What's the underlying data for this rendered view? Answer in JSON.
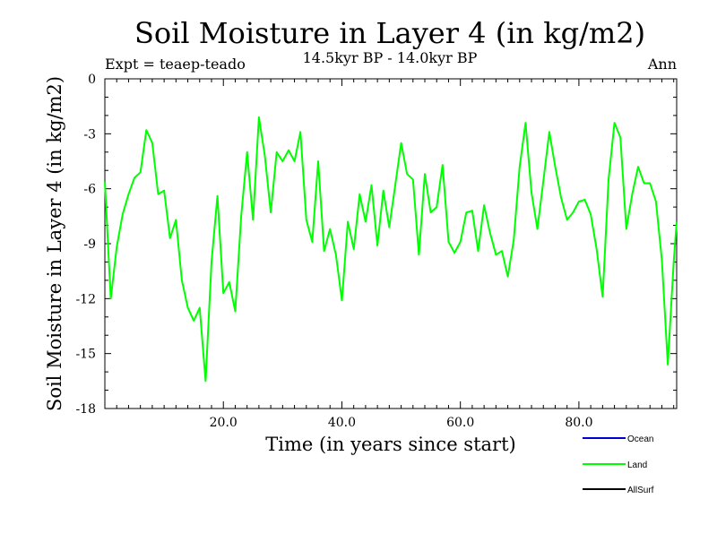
{
  "chart_data": {
    "type": "line",
    "title": "Soil Moisture in Layer 4 (in kg/m2)",
    "subtitle": "14.5kyr BP - 14.0kyr BP",
    "experiment_label": "Expt = teaep-teado",
    "season_label": "Ann",
    "xlabel": "Time (in years since start)",
    "ylabel": "Soil Moisture in Layer 4 (in kg/m2)",
    "xlim": [
      0,
      96.5
    ],
    "ylim": [
      -18,
      0
    ],
    "x_ticks": [
      20,
      40,
      60,
      80
    ],
    "x_tick_labels": [
      "20.0",
      "40.0",
      "60.0",
      "80.0"
    ],
    "y_ticks": [
      0,
      -3,
      -6,
      -9,
      -12,
      -15,
      -18
    ],
    "y_tick_labels": [
      "0",
      "-3",
      "-6",
      "-9",
      "-12",
      "-15",
      "-18"
    ],
    "legend": [
      {
        "name": "Ocean",
        "color": "#0000cc"
      },
      {
        "name": "Land",
        "color": "#00ff00"
      },
      {
        "name": "AllSurf",
        "color": "#000000"
      }
    ],
    "series": [
      {
        "name": "Land",
        "color": "#00ff00",
        "x": [
          0,
          1,
          2,
          3,
          4,
          5,
          6,
          7,
          8,
          9,
          10,
          11,
          12,
          13,
          14,
          15,
          16,
          17,
          18,
          19,
          20,
          21,
          22,
          23,
          24,
          25,
          26,
          27,
          28,
          29,
          30,
          31,
          32,
          33,
          34,
          35,
          36,
          37,
          38,
          39,
          40,
          41,
          42,
          43,
          44,
          45,
          46,
          47,
          48,
          49,
          50,
          51,
          52,
          53,
          54,
          55,
          56,
          57,
          58,
          59,
          60,
          61,
          62,
          63,
          64,
          65,
          66,
          67,
          68,
          69,
          70,
          71,
          72,
          73,
          74,
          75,
          76,
          77,
          78,
          79,
          80,
          81,
          82,
          83,
          84,
          85,
          86,
          87,
          88,
          89,
          90,
          91,
          92,
          93,
          94,
          95,
          96,
          96.5
        ],
        "values": [
          -5.6,
          -12.0,
          -9.2,
          -7.4,
          -6.3,
          -5.4,
          -5.1,
          -2.8,
          -3.5,
          -6.3,
          -6.1,
          -8.7,
          -7.7,
          -11.0,
          -12.5,
          -13.2,
          -12.5,
          -16.5,
          -10.0,
          -6.4,
          -11.7,
          -11.1,
          -12.7,
          -7.5,
          -4.0,
          -7.7,
          -2.1,
          -4.2,
          -7.3,
          -4.0,
          -4.5,
          -3.9,
          -4.5,
          -2.9,
          -7.7,
          -8.9,
          -4.5,
          -9.4,
          -8.2,
          -9.6,
          -12.1,
          -7.8,
          -9.3,
          -6.3,
          -7.8,
          -5.8,
          -9.1,
          -6.1,
          -8.1,
          -5.8,
          -3.5,
          -5.2,
          -5.5,
          -9.6,
          -5.2,
          -7.3,
          -7.0,
          -4.7,
          -8.9,
          -9.5,
          -8.9,
          -7.3,
          -7.2,
          -9.4,
          -6.9,
          -8.4,
          -9.6,
          -9.4,
          -10.8,
          -8.8,
          -4.8,
          -2.4,
          -6.2,
          -8.2,
          -5.6,
          -2.9,
          -4.8,
          -6.5,
          -7.7,
          -7.3,
          -6.7,
          -6.6,
          -7.4,
          -9.3,
          -11.9,
          -5.5,
          -2.4,
          -3.2,
          -8.2,
          -6.3,
          -4.8,
          -5.7,
          -5.7,
          -6.7,
          -9.9,
          -15.6,
          -10.0,
          -7.8
        ]
      }
    ]
  }
}
